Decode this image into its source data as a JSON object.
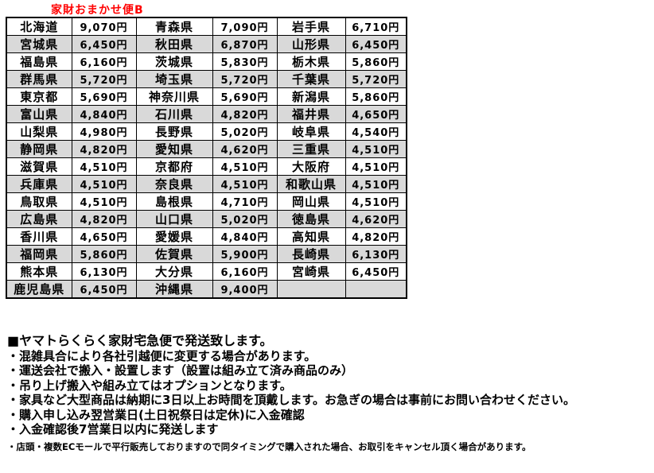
{
  "title": "家財おまかせ便B",
  "colors": {
    "title_red": "#ff0000",
    "row_shade": "#d9d9d9",
    "border": "#000000"
  },
  "table": {
    "columns": [
      "prefecture",
      "price",
      "prefecture",
      "price",
      "prefecture",
      "price"
    ],
    "rows": [
      [
        "北海道",
        "9,070円",
        "青森県",
        "7,090円",
        "岩手県",
        "6,710円"
      ],
      [
        "宮城県",
        "6,450円",
        "秋田県",
        "6,870円",
        "山形県",
        "6,450円"
      ],
      [
        "福島県",
        "6,160円",
        "茨城県",
        "5,830円",
        "栃木県",
        "5,860円"
      ],
      [
        "群馬県",
        "5,720円",
        "埼玉県",
        "5,720円",
        "千葉県",
        "5,720円"
      ],
      [
        "東京都",
        "5,690円",
        "神奈川県",
        "5,690円",
        "新潟県",
        "5,860円"
      ],
      [
        "富山県",
        "4,840円",
        "石川県",
        "4,820円",
        "福井県",
        "4,650円"
      ],
      [
        "山梨県",
        "4,980円",
        "長野県",
        "5,020円",
        "岐阜県",
        "4,540円"
      ],
      [
        "静岡県",
        "4,820円",
        "愛知県",
        "4,620円",
        "三重県",
        "4,510円"
      ],
      [
        "滋賀県",
        "4,510円",
        "京都府",
        "4,510円",
        "大阪府",
        "4,510円"
      ],
      [
        "兵庫県",
        "4,510円",
        "奈良県",
        "4,510円",
        "和歌山県",
        "4,510円"
      ],
      [
        "鳥取県",
        "4,510円",
        "島根県",
        "4,710円",
        "岡山県",
        "4,510円"
      ],
      [
        "広島県",
        "4,820円",
        "山口県",
        "5,020円",
        "徳島県",
        "4,620円"
      ],
      [
        "香川県",
        "4,650円",
        "愛媛県",
        "4,840円",
        "高知県",
        "4,820円"
      ],
      [
        "福岡県",
        "5,860円",
        "佐賀県",
        "5,900円",
        "長崎県",
        "6,130円"
      ],
      [
        "熊本県",
        "6,130円",
        "大分県",
        "6,160円",
        "宮崎県",
        "6,450円"
      ],
      [
        "鹿児島県",
        "6,450円",
        "沖縄県",
        "9,400円",
        "",
        ""
      ]
    ]
  },
  "notes": {
    "heading": "■ヤマトらくらく家財宅急便で発送致します。",
    "bullets": [
      "・混雑具合により各社引越便に変更する場合があります。",
      "・運送会社で搬入・設置します（設置は組み立て済み商品のみ）",
      "・吊り上げ搬入や組み立てはオプションとなります。",
      "・家具など大型商品は納期に3日以上お時間を頂戴します。お急ぎの場合は事前にお問い合わせください。",
      "・購入申し込み翌営業日(土日祝祭日は定休)に入金確認",
      "・入金確認後7営業日以内に発送します"
    ],
    "small_note": "・店頭・複数ECモールで平行販売しておりますので同タイミングで購入された場合、お取引をキャンセル頂く場合があります。"
  }
}
